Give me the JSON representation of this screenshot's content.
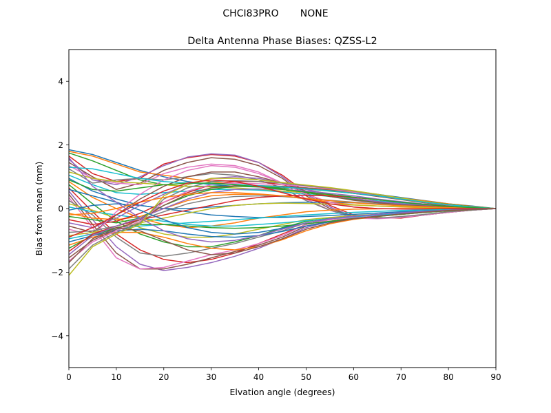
{
  "figure": {
    "suptitle": "CHCI83PRO       NONE"
  },
  "chart_data": {
    "type": "line",
    "title": "Delta Antenna Phase Biases: QZSS-L2",
    "xlabel": "Elvation angle (degrees)",
    "ylabel": "Bias from mean (mm)",
    "xlim": [
      0,
      90
    ],
    "ylim": [
      -5,
      5
    ],
    "xticks": [
      0,
      10,
      20,
      30,
      40,
      50,
      60,
      70,
      80,
      90
    ],
    "yticks": [
      -4,
      -2,
      0,
      2,
      4
    ],
    "ytick_labels": [
      "−4",
      "−2",
      "0",
      "2",
      "4"
    ],
    "grid": false,
    "x": [
      0,
      5,
      10,
      15,
      20,
      25,
      30,
      35,
      40,
      45,
      50,
      55,
      60,
      65,
      70,
      75,
      80,
      85,
      90
    ],
    "palette": [
      "#1f77b4",
      "#ff7f0e",
      "#2ca02c",
      "#d62728",
      "#9467bd",
      "#8c564b",
      "#e377c2",
      "#7f7f7f",
      "#bcbd22",
      "#17becf"
    ],
    "series": [
      {
        "values": [
          1.85,
          1.7,
          1.45,
          1.2,
          1.0,
          0.85,
          0.75,
          0.7,
          0.7,
          0.68,
          0.65,
          0.6,
          0.55,
          0.45,
          0.35,
          0.25,
          0.15,
          0.08,
          0
        ]
      },
      {
        "values": [
          1.8,
          1.65,
          1.4,
          1.15,
          1.05,
          0.95,
          0.85,
          0.75,
          0.7,
          0.68,
          0.65,
          0.6,
          0.5,
          0.42,
          0.33,
          0.24,
          0.15,
          0.07,
          0
        ]
      },
      {
        "values": [
          1.75,
          1.5,
          1.2,
          0.9,
          0.75,
          0.7,
          0.7,
          0.7,
          0.68,
          0.65,
          0.62,
          0.55,
          0.48,
          0.4,
          0.3,
          0.22,
          0.13,
          0.06,
          0
        ]
      },
      {
        "values": [
          1.65,
          1.1,
          0.85,
          0.95,
          1.4,
          1.6,
          1.7,
          1.65,
          1.45,
          1.05,
          0.5,
          0.1,
          -0.2,
          -0.28,
          -0.3,
          -0.2,
          -0.12,
          -0.05,
          0
        ]
      },
      {
        "values": [
          1.55,
          0.9,
          0.75,
          1.0,
          1.35,
          1.62,
          1.72,
          1.68,
          1.45,
          1.0,
          0.45,
          0.05,
          -0.25,
          -0.3,
          -0.28,
          -0.2,
          -0.12,
          -0.05,
          0
        ]
      },
      {
        "values": [
          1.45,
          1.0,
          0.6,
          0.8,
          1.2,
          1.45,
          1.6,
          1.55,
          1.35,
          0.95,
          0.4,
          0.0,
          -0.25,
          -0.3,
          -0.28,
          -0.2,
          -0.12,
          -0.05,
          0
        ]
      },
      {
        "values": [
          1.35,
          0.95,
          0.8,
          0.75,
          1.1,
          1.3,
          1.4,
          1.35,
          1.15,
          0.8,
          0.3,
          -0.05,
          -0.3,
          -0.32,
          -0.28,
          -0.2,
          -0.12,
          -0.05,
          0
        ]
      },
      {
        "values": [
          1.25,
          0.8,
          0.9,
          0.95,
          0.9,
          1.0,
          1.1,
          1.05,
          0.9,
          0.65,
          0.25,
          -0.05,
          -0.25,
          -0.3,
          -0.25,
          -0.18,
          -0.1,
          -0.05,
          0
        ]
      },
      {
        "values": [
          1.15,
          0.95,
          0.85,
          0.8,
          0.75,
          0.7,
          0.68,
          0.65,
          0.6,
          0.55,
          0.5,
          0.42,
          0.35,
          0.28,
          0.2,
          0.14,
          0.08,
          0.04,
          0
        ]
      },
      {
        "values": [
          1.05,
          0.75,
          0.5,
          0.45,
          0.5,
          0.55,
          0.6,
          0.6,
          0.58,
          0.52,
          0.45,
          0.38,
          0.3,
          0.24,
          0.18,
          0.12,
          0.07,
          0.03,
          0
        ]
      },
      {
        "values": [
          0.95,
          0.55,
          0.3,
          0.1,
          0.0,
          0.0,
          0.05,
          0.1,
          0.15,
          0.18,
          0.2,
          0.2,
          0.18,
          0.15,
          0.11,
          0.08,
          0.05,
          0.02,
          0
        ]
      },
      {
        "values": [
          0.85,
          0.35,
          0.0,
          -0.3,
          -0.5,
          -0.6,
          -0.55,
          -0.45,
          -0.3,
          -0.2,
          -0.1,
          -0.05,
          -0.02,
          -0.01,
          0.0,
          0.0,
          0.0,
          0.0,
          0
        ]
      },
      {
        "values": [
          0.75,
          0.15,
          -0.4,
          -0.8,
          -1.05,
          -1.2,
          -1.2,
          -1.05,
          -0.85,
          -0.6,
          -0.4,
          -0.3,
          -0.25,
          -0.2,
          -0.15,
          -0.1,
          -0.06,
          -0.03,
          0
        ]
      },
      {
        "values": [
          0.65,
          -0.1,
          -0.8,
          -1.3,
          -1.6,
          -1.7,
          -1.6,
          -1.4,
          -1.1,
          -0.8,
          -0.5,
          -0.35,
          -0.28,
          -0.22,
          -0.16,
          -0.11,
          -0.07,
          -0.03,
          0
        ]
      },
      {
        "values": [
          0.55,
          -0.35,
          -1.2,
          -1.75,
          -1.95,
          -1.85,
          -1.7,
          -1.5,
          -1.25,
          -0.95,
          -0.6,
          -0.4,
          -0.3,
          -0.24,
          -0.18,
          -0.12,
          -0.07,
          -0.03,
          0
        ]
      },
      {
        "values": [
          0.45,
          -0.5,
          -1.4,
          -1.9,
          -1.9,
          -1.75,
          -1.55,
          -1.35,
          -1.15,
          -0.9,
          -0.55,
          -0.4,
          -0.3,
          -0.24,
          -0.18,
          -0.12,
          -0.07,
          -0.03,
          0
        ]
      },
      {
        "values": [
          0.35,
          -0.6,
          -1.55,
          -1.9,
          -1.85,
          -1.65,
          -1.45,
          -1.3,
          -1.1,
          -0.85,
          -0.5,
          -0.35,
          -0.28,
          -0.22,
          -0.16,
          -0.11,
          -0.07,
          -0.03,
          0
        ]
      },
      {
        "values": [
          0.25,
          -0.2,
          -0.9,
          -1.4,
          -1.5,
          -1.4,
          -1.25,
          -1.1,
          -0.9,
          -0.7,
          -0.45,
          -0.32,
          -0.25,
          -0.2,
          -0.15,
          -0.1,
          -0.06,
          -0.03,
          0
        ]
      },
      {
        "values": [
          0.15,
          -0.05,
          -0.3,
          -0.6,
          -0.8,
          -0.9,
          -0.9,
          -0.8,
          -0.65,
          -0.5,
          -0.35,
          -0.28,
          -0.22,
          -0.18,
          -0.13,
          -0.09,
          -0.05,
          -0.02,
          0
        ]
      },
      {
        "values": [
          0.05,
          -0.1,
          -0.2,
          -0.3,
          -0.4,
          -0.5,
          -0.55,
          -0.55,
          -0.5,
          -0.45,
          -0.38,
          -0.32,
          -0.26,
          -0.2,
          -0.15,
          -0.1,
          -0.06,
          -0.03,
          0
        ]
      },
      {
        "values": [
          -0.05,
          0.1,
          0.15,
          0.1,
          0.0,
          -0.1,
          -0.2,
          -0.25,
          -0.28,
          -0.28,
          -0.25,
          -0.22,
          -0.18,
          -0.14,
          -0.1,
          -0.07,
          -0.04,
          -0.02,
          0
        ]
      },
      {
        "values": [
          -0.15,
          -0.3,
          -0.35,
          -0.25,
          0.0,
          0.25,
          0.4,
          0.45,
          0.45,
          0.4,
          0.3,
          0.2,
          0.12,
          0.08,
          0.05,
          0.03,
          0.02,
          0.01,
          0
        ]
      },
      {
        "values": [
          -0.25,
          -0.35,
          -0.45,
          -0.3,
          0.1,
          0.4,
          0.6,
          0.7,
          0.7,
          0.62,
          0.5,
          0.38,
          0.28,
          0.2,
          0.13,
          0.08,
          0.05,
          0.02,
          0
        ]
      },
      {
        "values": [
          -0.35,
          -0.5,
          -0.4,
          -0.15,
          0.2,
          0.5,
          0.75,
          0.85,
          0.85,
          0.75,
          0.6,
          0.45,
          0.32,
          0.22,
          0.15,
          0.09,
          0.05,
          0.02,
          0
        ]
      },
      {
        "values": [
          -0.45,
          -0.6,
          -0.3,
          0.1,
          0.45,
          0.75,
          0.95,
          1.0,
          0.95,
          0.8,
          0.6,
          0.45,
          0.32,
          0.22,
          0.15,
          0.09,
          0.05,
          0.02,
          0
        ]
      },
      {
        "values": [
          -0.55,
          -0.75,
          -0.2,
          0.3,
          0.7,
          1.0,
          1.15,
          1.15,
          1.0,
          0.8,
          0.55,
          0.38,
          0.26,
          0.18,
          0.12,
          0.08,
          0.04,
          0.02,
          0
        ]
      },
      {
        "values": [
          -0.65,
          -0.85,
          -0.1,
          0.45,
          0.9,
          1.2,
          1.35,
          1.3,
          1.1,
          0.8,
          0.45,
          0.2,
          0.05,
          0.0,
          -0.02,
          -0.02,
          -0.01,
          -0.01,
          0
        ]
      },
      {
        "values": [
          -0.75,
          -0.7,
          -0.55,
          -0.35,
          -0.1,
          0.15,
          0.3,
          0.38,
          0.4,
          0.38,
          0.32,
          0.26,
          0.2,
          0.15,
          0.1,
          0.06,
          0.03,
          0.01,
          0
        ]
      },
      {
        "values": [
          -0.85,
          -0.75,
          -0.6,
          -0.45,
          -0.3,
          -0.15,
          0.0,
          0.1,
          0.15,
          0.17,
          0.16,
          0.14,
          0.11,
          0.08,
          0.06,
          0.04,
          0.02,
          0.01,
          0
        ]
      },
      {
        "values": [
          -0.95,
          -0.8,
          -0.65,
          -0.55,
          -0.5,
          -0.45,
          -0.4,
          -0.35,
          -0.3,
          -0.25,
          -0.2,
          -0.16,
          -0.12,
          -0.09,
          -0.06,
          -0.04,
          -0.02,
          -0.01,
          0
        ]
      },
      {
        "values": [
          -1.05,
          -0.85,
          -0.7,
          -0.65,
          -0.7,
          -0.8,
          -0.88,
          -0.9,
          -0.85,
          -0.72,
          -0.55,
          -0.42,
          -0.32,
          -0.24,
          -0.17,
          -0.11,
          -0.06,
          -0.03,
          0
        ]
      },
      {
        "values": [
          -1.15,
          -0.9,
          -0.75,
          -0.75,
          -0.9,
          -1.1,
          -1.25,
          -1.3,
          -1.2,
          -0.98,
          -0.7,
          -0.48,
          -0.34,
          -0.25,
          -0.18,
          -0.12,
          -0.07,
          -0.03,
          0
        ]
      },
      {
        "values": [
          -1.25,
          -0.85,
          -0.6,
          -0.5,
          -0.5,
          -0.55,
          -0.6,
          -0.62,
          -0.6,
          -0.55,
          -0.48,
          -0.4,
          -0.32,
          -0.25,
          -0.18,
          -0.12,
          -0.07,
          -0.03,
          0
        ]
      },
      {
        "values": [
          -1.35,
          -0.8,
          -0.55,
          -0.35,
          -0.2,
          -0.05,
          0.1,
          0.25,
          0.35,
          0.4,
          0.42,
          0.4,
          0.35,
          0.28,
          0.2,
          0.13,
          0.07,
          0.03,
          0
        ]
      },
      {
        "values": [
          -1.45,
          -0.85,
          -0.55,
          -0.3,
          0.0,
          0.3,
          0.5,
          0.6,
          0.62,
          0.6,
          0.55,
          0.48,
          0.4,
          0.3,
          0.22,
          0.14,
          0.08,
          0.03,
          0
        ]
      },
      {
        "values": [
          -1.55,
          -1.0,
          -0.65,
          -0.35,
          0.1,
          0.45,
          0.65,
          0.72,
          0.72,
          0.7,
          0.65,
          0.58,
          0.48,
          0.38,
          0.28,
          0.18,
          0.1,
          0.04,
          0
        ]
      },
      {
        "values": [
          -1.65,
          -1.05,
          -0.7,
          -0.4,
          0.2,
          0.55,
          0.75,
          0.8,
          0.78,
          0.75,
          0.7,
          0.62,
          0.52,
          0.4,
          0.3,
          0.2,
          0.11,
          0.05,
          0
        ]
      },
      {
        "values": [
          -1.9,
          -1.15,
          -0.75,
          -0.45,
          0.3,
          0.65,
          0.85,
          0.88,
          0.85,
          0.8,
          0.72,
          0.64,
          0.55,
          0.43,
          0.32,
          0.21,
          0.12,
          0.05,
          0
        ]
      },
      {
        "values": [
          -2.1,
          -1.2,
          -0.8,
          -0.5,
          0.4,
          0.75,
          0.95,
          0.95,
          0.9,
          0.82,
          0.74,
          0.66,
          0.56,
          0.45,
          0.33,
          0.22,
          0.12,
          0.05,
          0
        ]
      },
      {
        "values": [
          1.3,
          1.25,
          1.1,
          0.95,
          0.85,
          0.8,
          0.78,
          0.76,
          0.72,
          0.68,
          0.62,
          0.56,
          0.48,
          0.4,
          0.3,
          0.2,
          0.12,
          0.05,
          0
        ]
      },
      {
        "values": [
          0.6,
          0.4,
          0.2,
          -0.05,
          -0.35,
          -0.6,
          -0.75,
          -0.8,
          -0.75,
          -0.62,
          -0.45,
          -0.32,
          -0.24,
          -0.18,
          -0.13,
          -0.09,
          -0.05,
          -0.02,
          0
        ]
      },
      {
        "values": [
          -0.2,
          -0.15,
          0.0,
          0.2,
          0.35,
          0.45,
          0.5,
          0.5,
          0.46,
          0.4,
          0.32,
          0.25,
          0.18,
          0.13,
          0.09,
          0.06,
          0.03,
          0.01,
          0
        ]
      },
      {
        "values": [
          0.9,
          0.6,
          0.55,
          0.65,
          0.75,
          0.8,
          0.8,
          0.75,
          0.68,
          0.6,
          0.52,
          0.44,
          0.36,
          0.28,
          0.2,
          0.13,
          0.07,
          0.03,
          0
        ]
      },
      {
        "values": [
          -0.9,
          -0.6,
          -0.2,
          0.2,
          0.55,
          0.8,
          0.9,
          0.85,
          0.7,
          0.5,
          0.3,
          0.15,
          0.05,
          0.0,
          -0.01,
          -0.01,
          0.0,
          0.0,
          0
        ]
      },
      {
        "values": [
          1.6,
          0.7,
          0.2,
          -0.3,
          -0.7,
          -0.95,
          -1.05,
          -1.0,
          -0.85,
          -0.65,
          -0.45,
          -0.32,
          -0.24,
          -0.18,
          -0.13,
          -0.09,
          -0.05,
          -0.02,
          0
        ]
      },
      {
        "values": [
          -1.7,
          -0.95,
          -0.6,
          -0.7,
          -1.0,
          -1.3,
          -1.45,
          -1.4,
          -1.2,
          -0.95,
          -0.65,
          -0.45,
          -0.32,
          -0.24,
          -0.17,
          -0.11,
          -0.06,
          -0.03,
          0
        ]
      }
    ]
  }
}
